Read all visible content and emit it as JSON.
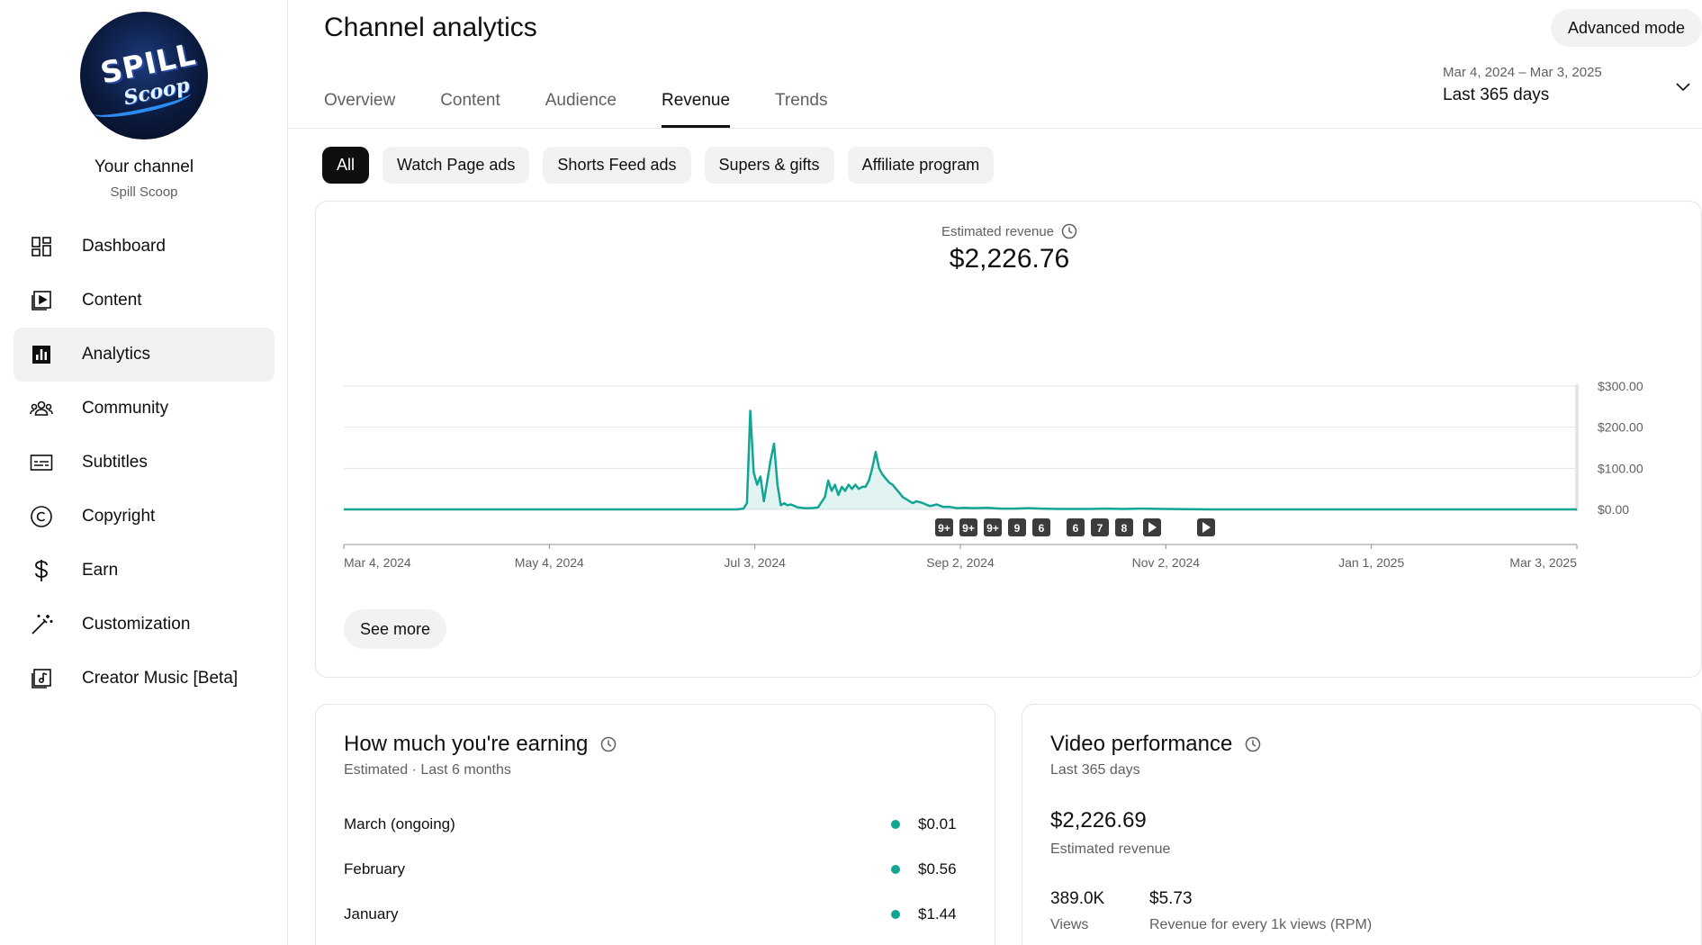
{
  "sidebar": {
    "avatar_logo_line1": "SPILL",
    "avatar_logo_line2": "Scoop",
    "your_channel": "Your channel",
    "channel_name": "Spill Scoop",
    "items": [
      {
        "label": "Dashboard",
        "icon": "dashboard-icon"
      },
      {
        "label": "Content",
        "icon": "content-icon"
      },
      {
        "label": "Analytics",
        "icon": "analytics-icon",
        "active": true
      },
      {
        "label": "Community",
        "icon": "community-icon"
      },
      {
        "label": "Subtitles",
        "icon": "subtitles-icon"
      },
      {
        "label": "Copyright",
        "icon": "copyright-icon"
      },
      {
        "label": "Earn",
        "icon": "dollar-icon"
      },
      {
        "label": "Customization",
        "icon": "magic-wand-icon"
      },
      {
        "label": "Creator Music [Beta]",
        "icon": "music-icon"
      }
    ]
  },
  "header": {
    "title": "Channel analytics",
    "advanced_mode": "Advanced mode",
    "tabs": [
      "Overview",
      "Content",
      "Audience",
      "Revenue",
      "Trends"
    ],
    "active_tab": "Revenue",
    "date_range": "Mar 4, 2024 – Mar 3, 2025",
    "date_preset": "Last 365 days"
  },
  "filters": {
    "chips": [
      "All",
      "Watch Page ads",
      "Shorts Feed ads",
      "Supers & gifts",
      "Affiliate program"
    ],
    "active": "All"
  },
  "chart_card": {
    "metric_label": "Estimated revenue",
    "metric_value": "$2,226.76",
    "see_more": "See more"
  },
  "chart_data": {
    "type": "area",
    "title": "Estimated revenue",
    "x_tick_labels": [
      "Mar 4, 2024",
      "May 4, 2024",
      "Jul 3, 2024",
      "Sep 2, 2024",
      "Nov 2, 2024",
      "Jan 1, 2025",
      "Mar 3, 2025"
    ],
    "y_tick_labels": [
      "$300.00",
      "$200.00",
      "$100.00",
      "$0.00"
    ],
    "ylim": [
      0,
      300
    ],
    "grid": true,
    "series_color": "#12a594",
    "series": [
      {
        "points": [
          [
            "2024-03-04",
            0
          ],
          [
            "2024-06-20",
            0
          ],
          [
            "2024-06-28",
            0
          ],
          [
            "2024-06-30",
            2
          ],
          [
            "2024-07-01",
            15
          ],
          [
            "2024-07-02",
            240
          ],
          [
            "2024-07-03",
            90
          ],
          [
            "2024-07-04",
            60
          ],
          [
            "2024-07-05",
            80
          ],
          [
            "2024-07-06",
            20
          ],
          [
            "2024-07-07",
            70
          ],
          [
            "2024-07-08",
            120
          ],
          [
            "2024-07-09",
            160
          ],
          [
            "2024-07-10",
            60
          ],
          [
            "2024-07-11",
            10
          ],
          [
            "2024-07-12",
            15
          ],
          [
            "2024-07-13",
            10
          ],
          [
            "2024-07-14",
            12
          ],
          [
            "2024-07-16",
            5
          ],
          [
            "2024-07-18",
            3
          ],
          [
            "2024-07-20",
            3
          ],
          [
            "2024-07-22",
            5
          ],
          [
            "2024-07-24",
            30
          ],
          [
            "2024-07-25",
            70
          ],
          [
            "2024-07-26",
            45
          ],
          [
            "2024-07-27",
            60
          ],
          [
            "2024-07-28",
            35
          ],
          [
            "2024-07-29",
            55
          ],
          [
            "2024-07-30",
            45
          ],
          [
            "2024-07-31",
            60
          ],
          [
            "2024-08-01",
            50
          ],
          [
            "2024-08-02",
            60
          ],
          [
            "2024-08-03",
            50
          ],
          [
            "2024-08-04",
            55
          ],
          [
            "2024-08-05",
            55
          ],
          [
            "2024-08-06",
            70
          ],
          [
            "2024-08-07",
            100
          ],
          [
            "2024-08-08",
            140
          ],
          [
            "2024-08-09",
            100
          ],
          [
            "2024-08-10",
            85
          ],
          [
            "2024-08-11",
            75
          ],
          [
            "2024-08-12",
            65
          ],
          [
            "2024-08-13",
            60
          ],
          [
            "2024-08-14",
            50
          ],
          [
            "2024-08-15",
            40
          ],
          [
            "2024-08-16",
            30
          ],
          [
            "2024-08-17",
            25
          ],
          [
            "2024-08-18",
            20
          ],
          [
            "2024-08-19",
            15
          ],
          [
            "2024-08-20",
            20
          ],
          [
            "2024-08-22",
            15
          ],
          [
            "2024-08-24",
            8
          ],
          [
            "2024-08-26",
            12
          ],
          [
            "2024-08-28",
            6
          ],
          [
            "2024-08-30",
            6
          ],
          [
            "2024-09-01",
            3
          ],
          [
            "2024-09-03",
            4
          ],
          [
            "2024-09-06",
            3
          ],
          [
            "2024-09-10",
            4
          ],
          [
            "2024-09-14",
            2
          ],
          [
            "2024-09-18",
            2
          ],
          [
            "2024-09-22",
            3
          ],
          [
            "2024-09-26",
            2
          ],
          [
            "2024-10-01",
            1
          ],
          [
            "2024-10-10",
            1
          ],
          [
            "2024-10-15",
            2
          ],
          [
            "2024-10-20",
            1
          ],
          [
            "2024-10-25",
            2
          ],
          [
            "2024-11-01",
            1
          ],
          [
            "2024-11-15",
            0
          ],
          [
            "2025-01-01",
            0
          ],
          [
            "2025-03-03",
            0
          ]
        ]
      }
    ],
    "upload_markers": [
      "9+",
      "9+",
      "9+",
      "9",
      "6",
      "6",
      "7",
      "8",
      "play",
      "play"
    ]
  },
  "earning_card": {
    "title": "How much you're earning",
    "subtitle": "Estimated · Last 6 months",
    "rows": [
      {
        "label": "March (ongoing)",
        "value": "$0.01"
      },
      {
        "label": "February",
        "value": "$0.56"
      },
      {
        "label": "January",
        "value": "$1.44"
      }
    ]
  },
  "video_card": {
    "title": "Video performance",
    "subtitle": "Last 365 days",
    "revenue": "$2,226.69",
    "revenue_label": "Estimated revenue",
    "views": "389.0K",
    "views_label": "Views",
    "rpm": "$5.73",
    "rpm_label": "Revenue for every 1k views (RPM)"
  }
}
